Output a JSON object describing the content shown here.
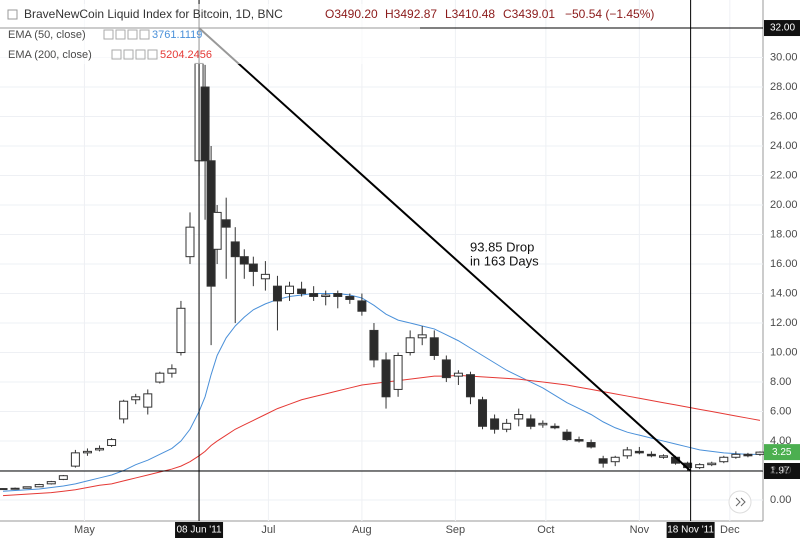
{
  "chart_data": {
    "type": "candlestick",
    "title": "BraveNewCoin Liquid Index for Bitcoin, 1D, BNC",
    "ohlc_labels": [
      "O3490.20",
      "H3492.87",
      "L3410.48",
      "C3439.01",
      "−50.54 (−1.45%)"
    ],
    "x": [
      "2011-04-04",
      "2011-04-08",
      "2011-04-12",
      "2011-04-16",
      "2011-04-20",
      "2011-04-24",
      "2011-04-28",
      "2011-05-02",
      "2011-05-06",
      "2011-05-10",
      "2011-05-14",
      "2011-05-18",
      "2011-05-22",
      "2011-05-26",
      "2011-05-30",
      "2011-06-02",
      "2011-06-05",
      "2011-06-08",
      "2011-06-10",
      "2011-06-12",
      "2011-06-14",
      "2011-06-17",
      "2011-06-20",
      "2011-06-23",
      "2011-06-26",
      "2011-06-30",
      "2011-07-04",
      "2011-07-08",
      "2011-07-12",
      "2011-07-16",
      "2011-07-20",
      "2011-07-24",
      "2011-07-28",
      "2011-08-01",
      "2011-08-05",
      "2011-08-09",
      "2011-08-13",
      "2011-08-17",
      "2011-08-21",
      "2011-08-25",
      "2011-08-29",
      "2011-09-02",
      "2011-09-06",
      "2011-09-10",
      "2011-09-14",
      "2011-09-18",
      "2011-09-22",
      "2011-09-26",
      "2011-09-30",
      "2011-10-04",
      "2011-10-08",
      "2011-10-12",
      "2011-10-16",
      "2011-10-20",
      "2011-10-24",
      "2011-10-28",
      "2011-11-01",
      "2011-11-05",
      "2011-11-09",
      "2011-11-13",
      "2011-11-17",
      "2011-11-21",
      "2011-11-25",
      "2011-11-29",
      "2011-12-03",
      "2011-12-07",
      "2011-12-11"
    ],
    "open": [
      0.75,
      0.78,
      0.8,
      0.9,
      1.1,
      1.4,
      2.3,
      3.2,
      3.4,
      3.7,
      5.5,
      6.8,
      6.3,
      8.0,
      8.6,
      10,
      16.5,
      23,
      28,
      23,
      17,
      19,
      17.5,
      16.5,
      16,
      15,
      14.5,
      14,
      14.3,
      14,
      13.8,
      14,
      13.8,
      13.5,
      11.5,
      9.5,
      7.5,
      10,
      11,
      11,
      9.5,
      8.4,
      8.5,
      6.8,
      5.5,
      4.8,
      5.5,
      5.5,
      5.1,
      5,
      4.6,
      4.1,
      3.9,
      2.8,
      2.6,
      3.0,
      3.3,
      3.1,
      2.9,
      2.9,
      2.5,
      2.2,
      2.4,
      2.6,
      2.9,
      3.1,
      3.1
    ],
    "high": [
      0.8,
      0.85,
      0.9,
      1.1,
      1.3,
      1.7,
      3.4,
      3.5,
      3.7,
      4.2,
      6.8,
      7.2,
      7.5,
      8.7,
      9.2,
      13.5,
      19.5,
      31.9,
      29.5,
      24,
      20,
      20.5,
      18.5,
      17,
      16.5,
      16.2,
      15.2,
      14.8,
      14.8,
      14.5,
      14.2,
      14.2,
      14,
      14,
      12,
      10,
      10,
      11.5,
      11.8,
      11.5,
      9.8,
      8.8,
      8.7,
      7,
      5.8,
      5.5,
      6.2,
      5.8,
      5.4,
      5.2,
      4.8,
      4.3,
      4.1,
      3.0,
      3.0,
      3.6,
      3.6,
      3.3,
      3.1,
      3.0,
      2.6,
      2.5,
      2.6,
      3.0,
      3.3,
      3.2,
      3.3
    ],
    "low": [
      0.7,
      0.74,
      0.78,
      0.9,
      1.05,
      1.35,
      2.2,
      3.0,
      3.3,
      3.6,
      5.2,
      6.5,
      5.8,
      7.9,
      8.3,
      9.8,
      16,
      22,
      19,
      10.5,
      16,
      15,
      12,
      15,
      14.5,
      14.2,
      11.5,
      13.5,
      13.8,
      13.5,
      13.2,
      13,
      13.3,
      12.5,
      9,
      6.2,
      7,
      9.8,
      10.5,
      9.5,
      8,
      7.8,
      6.5,
      4.8,
      4.5,
      4.6,
      5,
      4.8,
      4.9,
      4.8,
      4,
      3.9,
      3.5,
      2.2,
      2.3,
      2.8,
      3.1,
      2.9,
      2.8,
      2.4,
      1.97,
      2.1,
      2.3,
      2.5,
      2.8,
      2.9,
      3.0
    ],
    "close": [
      0.78,
      0.8,
      0.9,
      1.05,
      1.25,
      1.65,
      3.2,
      3.3,
      3.5,
      4.1,
      6.7,
      7.0,
      7.2,
      8.6,
      8.9,
      13.0,
      18.5,
      29.6,
      23,
      14.5,
      19.5,
      18.5,
      16.5,
      16,
      15.5,
      15.3,
      13.5,
      14.5,
      14,
      13.8,
      13.9,
      13.8,
      13.6,
      12.8,
      9.5,
      7,
      9.8,
      11,
      11.2,
      9.8,
      8.3,
      8.6,
      7,
      5,
      4.8,
      5.2,
      5.8,
      5.0,
      5.2,
      4.9,
      4.1,
      4.0,
      3.6,
      2.5,
      2.9,
      3.4,
      3.2,
      3.0,
      3.0,
      2.5,
      2.2,
      2.4,
      2.5,
      2.9,
      3.1,
      3.0,
      3.25
    ],
    "up_color": "#ffffff",
    "down_color": "#2b2b2b",
    "wick_color": "#333333",
    "series": [
      {
        "name": "EMA (50, close)",
        "value_label": "3761.1119",
        "color": "#4a90d9",
        "values": [
          0.6,
          0.65,
          0.7,
          0.75,
          0.85,
          0.95,
          1.1,
          1.3,
          1.5,
          1.7,
          2.0,
          2.4,
          2.7,
          3.1,
          3.5,
          4.0,
          4.8,
          6.0,
          7.0,
          8.5,
          9.8,
          11.0,
          11.8,
          12.4,
          12.9,
          13.3,
          13.6,
          13.8,
          13.9,
          14.0,
          14.0,
          14.0,
          13.9,
          13.7,
          13.2,
          12.6,
          12.2,
          12.0,
          11.8,
          11.6,
          11.2,
          10.8,
          10.3,
          9.8,
          9.3,
          8.8,
          8.4,
          8.0,
          7.6,
          7.1,
          6.6,
          6.2,
          5.8,
          5.3,
          4.9,
          4.6,
          4.4,
          4.2,
          4.0,
          3.8,
          3.6,
          3.4,
          3.3,
          3.2,
          3.15,
          3.1,
          3.1
        ]
      },
      {
        "name": "EMA (200, close)",
        "value_label": "5204.2456",
        "color": "#e53935",
        "values": [
          0.3,
          0.35,
          0.4,
          0.45,
          0.5,
          0.6,
          0.7,
          0.85,
          1.0,
          1.1,
          1.3,
          1.5,
          1.7,
          1.9,
          2.1,
          2.3,
          2.6,
          3.0,
          3.3,
          3.7,
          4.0,
          4.4,
          4.8,
          5.1,
          5.4,
          5.8,
          6.2,
          6.5,
          6.8,
          7.0,
          7.2,
          7.4,
          7.6,
          7.8,
          7.9,
          8.0,
          8.1,
          8.2,
          8.3,
          8.4,
          8.4,
          8.45,
          8.4,
          8.35,
          8.3,
          8.25,
          8.2,
          8.1,
          8.0,
          7.9,
          7.8,
          7.65,
          7.5,
          7.35,
          7.2,
          7.05,
          6.9,
          6.75,
          6.6,
          6.45,
          6.3,
          6.15,
          6.0,
          5.85,
          5.7,
          5.55,
          5.4
        ]
      }
    ],
    "xlim": [
      "2011-04-03",
      "2011-12-12"
    ],
    "xticks": [
      {
        "value": "2011-05-01",
        "label": "May"
      },
      {
        "value": "2011-07-01",
        "label": "Jul"
      },
      {
        "value": "2011-08-01",
        "label": "Aug"
      },
      {
        "value": "2011-09-01",
        "label": "Sep"
      },
      {
        "value": "2011-10-01",
        "label": "Oct"
      },
      {
        "value": "2011-11-01",
        "label": "Nov"
      },
      {
        "value": "2011-12-01",
        "label": "Dec"
      }
    ],
    "ylim": [
      -1.42,
      33.9
    ],
    "yticks": [
      {
        "value": 0,
        "label": "0.00"
      },
      {
        "value": 2,
        "label": "2.00"
      },
      {
        "value": 4,
        "label": "4.00"
      },
      {
        "value": 6,
        "label": "6.00"
      },
      {
        "value": 8,
        "label": "8.00"
      },
      {
        "value": 10,
        "label": "10.00"
      },
      {
        "value": 12,
        "label": "12.00"
      },
      {
        "value": 14,
        "label": "14.00"
      },
      {
        "value": 16,
        "label": "16.00"
      },
      {
        "value": 18,
        "label": "18.00"
      },
      {
        "value": 20,
        "label": "20.00"
      },
      {
        "value": 22,
        "label": "22.00"
      },
      {
        "value": 24,
        "label": "24.00"
      },
      {
        "value": 26,
        "label": "26.00"
      },
      {
        "value": 28,
        "label": "28.00"
      },
      {
        "value": 30,
        "label": "30.00"
      }
    ],
    "grid": true,
    "markers": [
      {
        "x": "2011-06-08",
        "y": 32,
        "x_label": "08 Jun '11",
        "y_label": "32.00"
      },
      {
        "x": "2011-11-18",
        "y": 1.97,
        "x_label": "18 Nov '11",
        "y_label": "1.97"
      }
    ],
    "last_price": {
      "value": 3.25,
      "label": "3.25",
      "color": "#4caf50"
    },
    "annotation": [
      "93.85 Drop",
      "in 163 Days"
    ]
  }
}
